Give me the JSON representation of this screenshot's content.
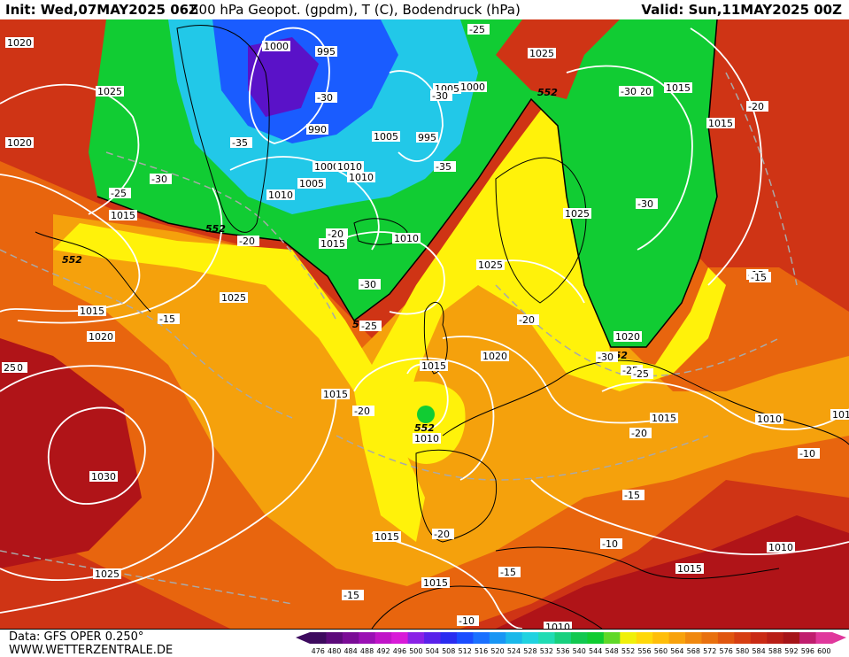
{
  "header": {
    "init": "Init: Wed,07MAY2025 06Z",
    "title": "500 hPa Geopot. (gpdm), T (C), Bodendruck (hPa)",
    "valid": "Valid: Sun,11MAY2025 00Z"
  },
  "footer": {
    "data_source": "Data: GFS OPER 0.250°",
    "website": "WWW.WETTERZENTRALE.DE"
  },
  "map": {
    "region": "North Atlantic and Europe",
    "field_colors": {
      "violet_core": "#5a12c8",
      "blue": "#1a5cff",
      "cyan": "#22c8e8",
      "green": "#11cc33",
      "yellow": "#fff20a",
      "orange": "#f5a10c",
      "dark_orange": "#e8650e",
      "red": "#cf3415",
      "dark_red": "#b01418",
      "contour_line": "#ffffff",
      "isotherm_line": "#a9a9a9",
      "coastline": "#000000"
    },
    "geopotential_labels": [
      {
        "text": "552",
        "id": "geo-greenland"
      },
      {
        "text": "552",
        "id": "geo-labrador"
      },
      {
        "text": "552",
        "id": "geo-ireland"
      },
      {
        "text": "552",
        "id": "geo-scandinavia"
      },
      {
        "text": "552",
        "id": "geo-finland"
      },
      {
        "text": "552",
        "id": "geo-biscay"
      }
    ],
    "pressure_labels": [
      {
        "text": "1020"
      },
      {
        "text": "1025"
      },
      {
        "text": "1025"
      },
      {
        "text": "1020"
      },
      {
        "text": "1015"
      },
      {
        "text": "1000"
      },
      {
        "text": "995"
      },
      {
        "text": "990"
      },
      {
        "text": "1000"
      },
      {
        "text": "1010"
      },
      {
        "text": "1005"
      },
      {
        "text": "1010"
      },
      {
        "text": "1010"
      },
      {
        "text": "1005"
      },
      {
        "text": "995"
      },
      {
        "text": "1000"
      },
      {
        "text": "1005"
      },
      {
        "text": "1010"
      },
      {
        "text": "1015"
      },
      {
        "text": "1025"
      },
      {
        "text": "1020"
      },
      {
        "text": "1015"
      },
      {
        "text": "1015"
      },
      {
        "text": "1025"
      },
      {
        "text": "1015"
      },
      {
        "text": "1020"
      },
      {
        "text": "1025"
      },
      {
        "text": "1015"
      },
      {
        "text": "1020"
      },
      {
        "text": "1020"
      },
      {
        "text": "1015"
      },
      {
        "text": "1010"
      },
      {
        "text": "1015"
      },
      {
        "text": "1030"
      },
      {
        "text": "1015"
      },
      {
        "text": "1025"
      },
      {
        "text": "1015"
      },
      {
        "text": "1015"
      },
      {
        "text": "1010"
      },
      {
        "text": "1010"
      },
      {
        "text": "1010"
      },
      {
        "text": "1010"
      }
    ],
    "temperature_labels": [
      {
        "text": "-25"
      },
      {
        "text": "-30"
      },
      {
        "text": "-30"
      },
      {
        "text": "-35"
      },
      {
        "text": "-30"
      },
      {
        "text": "-25"
      },
      {
        "text": "-35"
      },
      {
        "text": "-20"
      },
      {
        "text": "-20"
      },
      {
        "text": "-30"
      },
      {
        "text": "-25"
      },
      {
        "text": "-30"
      },
      {
        "text": "-30"
      },
      {
        "text": "-20"
      },
      {
        "text": "-25"
      },
      {
        "text": "-30"
      },
      {
        "text": "-20"
      },
      {
        "text": "-15"
      },
      {
        "text": "-20"
      },
      {
        "text": "-20"
      },
      {
        "text": "-25"
      },
      {
        "text": "-20"
      },
      {
        "text": "-15"
      },
      {
        "text": "-15"
      },
      {
        "text": "-10"
      },
      {
        "text": "-10"
      },
      {
        "text": "-15"
      },
      {
        "text": "-10"
      },
      {
        "text": "-10"
      },
      {
        "text": "-15"
      },
      {
        "text": "-10"
      },
      {
        "text": "-15"
      },
      {
        "text": "25"
      }
    ]
  },
  "colorbar": {
    "ticks": [
      "476",
      "480",
      "484",
      "488",
      "492",
      "496",
      "500",
      "504",
      "508",
      "512",
      "516",
      "520",
      "524",
      "528",
      "532",
      "536",
      "540",
      "544",
      "548",
      "552",
      "556",
      "560",
      "564",
      "568",
      "572",
      "576",
      "580",
      "584",
      "588",
      "592",
      "596",
      "600"
    ],
    "colors": [
      "#3d0a5e",
      "#5c0a7a",
      "#7a0c96",
      "#9a10b4",
      "#c014c8",
      "#d81ad8",
      "#8a22e6",
      "#5a22ea",
      "#2a2cf0",
      "#1a4cff",
      "#1a70ff",
      "#1896f4",
      "#1ab8ea",
      "#20d2e0",
      "#20dcb4",
      "#18d07e",
      "#12c850",
      "#10cc30",
      "#60d828",
      "#f0f00a",
      "#ffd80a",
      "#ffbe0a",
      "#f8a20c",
      "#f0880e",
      "#e8700e",
      "#e0560f",
      "#d63e12",
      "#c92a14",
      "#b81e16",
      "#a51418",
      "#c01e6e",
      "#e0389c"
    ]
  }
}
